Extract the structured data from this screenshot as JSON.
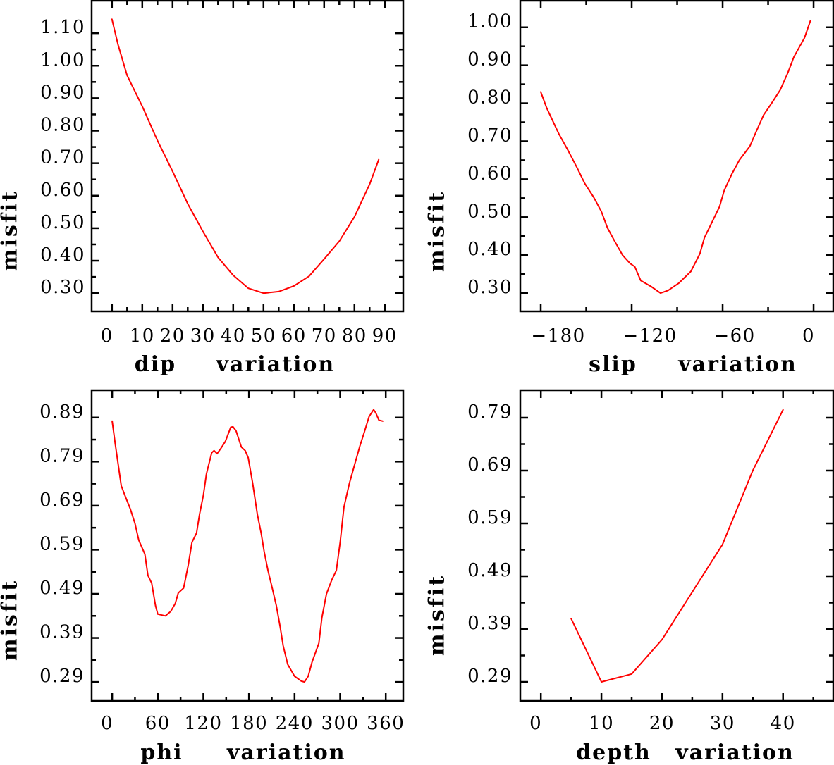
{
  "chart_data": [
    {
      "type": "line",
      "title": "",
      "xlabel": "dip variation",
      "ylabel": "misfit",
      "xlim": [
        -6.7,
        96.1
      ],
      "ylim": [
        0.244,
        1.2
      ],
      "grid": false,
      "legend": "none",
      "x_ticks": [
        0,
        10,
        20,
        30,
        40,
        50,
        60,
        70,
        80,
        90
      ],
      "x_tick_labels": [
        "0",
        "10",
        "20",
        "30",
        "40",
        "50",
        "60",
        "70",
        "80",
        "90"
      ],
      "x_minor_ticks": [
        5,
        15,
        25,
        35,
        45,
        55,
        65,
        75,
        85
      ],
      "y_ticks": [
        0.3,
        0.4,
        0.5,
        0.6,
        0.7,
        0.8,
        0.9,
        1.0,
        1.1
      ],
      "y_tick_labels": [
        "0.30",
        "0.40",
        "0.50",
        "0.60",
        "0.70",
        "0.80",
        "0.90",
        "1.00",
        "1.10"
      ],
      "y_minor_ticks": [
        0.35,
        0.45,
        0.55,
        0.65,
        0.75,
        0.85,
        0.95,
        1.05
      ],
      "series": [
        {
          "name": "misfit",
          "color": "#ff0000",
          "x": [
            0,
            2,
            5,
            10,
            15,
            20,
            25,
            30,
            35,
            40,
            45,
            50,
            55,
            60,
            65,
            70,
            75,
            80,
            85,
            88
          ],
          "y": [
            1.143,
            1.065,
            0.97,
            0.875,
            0.77,
            0.675,
            0.575,
            0.49,
            0.41,
            0.355,
            0.315,
            0.3,
            0.305,
            0.322,
            0.352,
            0.405,
            0.46,
            0.535,
            0.635,
            0.711
          ]
        }
      ]
    },
    {
      "type": "line",
      "title": "",
      "xlabel": "slip variation",
      "ylabel": "misfit",
      "xlim": [
        -193.5,
        13
      ],
      "ylim": [
        0.252,
        1.07
      ],
      "grid": false,
      "legend": "none",
      "x_ticks": [
        -180,
        -120,
        -60,
        0
      ],
      "x_tick_labels": [
        "−180",
        "−120",
        "−60",
        "0"
      ],
      "x_minor_ticks": [
        -150,
        -90,
        -30
      ],
      "y_ticks": [
        0.3,
        0.4,
        0.5,
        0.6,
        0.7,
        0.8,
        0.9,
        1.0
      ],
      "y_tick_labels": [
        "0.30",
        "0.40",
        "0.50",
        "0.60",
        "0.70",
        "0.80",
        "0.90",
        "1.00"
      ],
      "y_minor_ticks": [
        0.35,
        0.45,
        0.55,
        0.65,
        0.75,
        0.85,
        0.95
      ],
      "series": [
        {
          "name": "misfit",
          "color": "#ff0000",
          "x": [
            -180,
            -176,
            -168,
            -162,
            -156,
            -151,
            -145,
            -140,
            -136,
            -131,
            -126,
            -121,
            -118,
            -114,
            -107,
            -101,
            -96,
            -89,
            -81,
            -75,
            -72,
            -67,
            -62,
            -59,
            -54,
            -49,
            -42,
            -38,
            -33,
            -28,
            -22,
            -17,
            -13,
            -6,
            -2
          ],
          "y": [
            0.83,
            0.787,
            0.719,
            0.676,
            0.63,
            0.589,
            0.552,
            0.515,
            0.472,
            0.435,
            0.4,
            0.378,
            0.37,
            0.333,
            0.317,
            0.3,
            0.307,
            0.326,
            0.357,
            0.404,
            0.446,
            0.487,
            0.528,
            0.57,
            0.613,
            0.65,
            0.687,
            0.724,
            0.769,
            0.798,
            0.835,
            0.88,
            0.922,
            0.972,
            1.018
          ]
        }
      ]
    },
    {
      "type": "line",
      "title": "",
      "xlabel": "phi variation",
      "ylabel": "misfit",
      "xlim": [
        -27,
        383
      ],
      "ylim": [
        0.247,
        0.952
      ],
      "grid": false,
      "legend": "none",
      "x_ticks": [
        0,
        60,
        120,
        180,
        240,
        300,
        360
      ],
      "x_tick_labels": [
        "0",
        "60",
        "120",
        "180",
        "240",
        "300",
        "360"
      ],
      "x_minor_ticks": [
        30,
        90,
        150,
        210,
        270,
        330
      ],
      "y_ticks": [
        0.29,
        0.39,
        0.49,
        0.59,
        0.69,
        0.79,
        0.89
      ],
      "y_tick_labels": [
        "0.29",
        "0.39",
        "0.49",
        "0.59",
        "0.69",
        "0.79",
        "0.89"
      ],
      "y_minor_ticks": [
        0.34,
        0.44,
        0.54,
        0.64,
        0.74,
        0.84
      ],
      "series": [
        {
          "name": "misfit",
          "color": "#ff0000",
          "x": [
            0,
            4,
            8,
            12,
            18,
            24,
            30,
            35,
            43,
            47,
            52,
            57,
            60,
            70,
            77,
            83,
            87,
            94,
            100,
            105,
            111,
            115,
            120,
            124,
            131,
            134,
            138,
            143,
            149,
            156,
            159,
            163,
            170,
            175,
            179,
            185,
            191,
            196,
            200,
            205,
            211,
            216,
            221,
            225,
            231,
            240,
            249,
            253,
            258,
            263,
            272,
            276,
            282,
            289,
            295,
            300,
            305,
            312,
            319,
            326,
            332,
            338,
            344,
            347,
            351,
            356
          ],
          "y": [
            0.882,
            0.831,
            0.783,
            0.735,
            0.708,
            0.682,
            0.65,
            0.612,
            0.58,
            0.532,
            0.514,
            0.463,
            0.444,
            0.44,
            0.45,
            0.468,
            0.492,
            0.503,
            0.554,
            0.607,
            0.628,
            0.671,
            0.714,
            0.762,
            0.81,
            0.815,
            0.808,
            0.82,
            0.836,
            0.868,
            0.869,
            0.86,
            0.823,
            0.815,
            0.799,
            0.74,
            0.671,
            0.628,
            0.586,
            0.543,
            0.5,
            0.463,
            0.415,
            0.372,
            0.33,
            0.303,
            0.292,
            0.29,
            0.303,
            0.335,
            0.378,
            0.436,
            0.49,
            0.522,
            0.543,
            0.607,
            0.687,
            0.74,
            0.783,
            0.826,
            0.858,
            0.892,
            0.908,
            0.9,
            0.884,
            0.882
          ]
        }
      ]
    },
    {
      "type": "line",
      "title": "",
      "xlabel": "depth variation",
      "ylabel": "misfit",
      "xlim": [
        -3.4,
        48.3
      ],
      "ylim": [
        0.254,
        0.842
      ],
      "grid": false,
      "legend": "none",
      "x_ticks": [
        0,
        10,
        20,
        30,
        40
      ],
      "x_tick_labels": [
        "0",
        "10",
        "20",
        "30",
        "40"
      ],
      "x_minor_ticks": [
        5,
        15,
        25,
        35,
        45
      ],
      "y_ticks": [
        0.29,
        0.39,
        0.49,
        0.59,
        0.69,
        0.79
      ],
      "y_tick_labels": [
        "0.29",
        "0.39",
        "0.49",
        "0.59",
        "0.69",
        "0.79"
      ],
      "y_minor_ticks": [
        0.34,
        0.44,
        0.54,
        0.64,
        0.74
      ],
      "series": [
        {
          "name": "misfit",
          "color": "#ff0000",
          "x": [
            5,
            10,
            15,
            20,
            25,
            30,
            35,
            40
          ],
          "y": [
            0.41,
            0.29,
            0.305,
            0.37,
            0.46,
            0.55,
            0.69,
            0.805
          ]
        }
      ]
    }
  ]
}
